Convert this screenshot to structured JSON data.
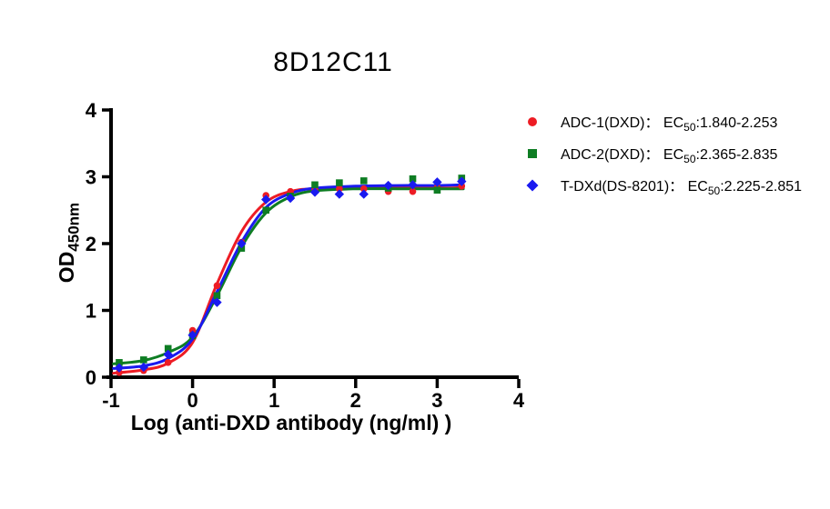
{
  "title": "8D12C11",
  "chart_data": {
    "type": "scatter",
    "title": "8D12C11",
    "xlabel": "Log (anti-DXD antibody (ng/ml) )",
    "ylabel": {
      "base": "OD",
      "subscript": "450nm"
    },
    "xlim": [
      -1,
      4
    ],
    "ylim": [
      0,
      4
    ],
    "x_ticks": [
      -1,
      0,
      1,
      2,
      3,
      4
    ],
    "y_ticks": [
      0,
      1,
      2,
      3,
      4
    ],
    "grid": false,
    "legend_position": "right-outside",
    "x": [
      -0.9,
      -0.6,
      -0.3,
      0.0,
      0.3,
      0.6,
      0.9,
      1.2,
      1.5,
      1.8,
      2.1,
      2.4,
      2.7,
      3.0,
      3.3
    ],
    "series": [
      {
        "name": "ADC-1(DXD)",
        "marker": "circle",
        "color": "#ed1c24",
        "ec50_range": "1.840-2.253",
        "values": [
          0.07,
          0.1,
          0.22,
          0.7,
          1.37,
          2.02,
          2.72,
          2.78,
          2.81,
          2.82,
          2.82,
          2.78,
          2.78,
          2.84,
          2.86
        ],
        "curve": [
          [
            -0.97,
            0.06
          ],
          [
            -0.6,
            0.11
          ],
          [
            -0.3,
            0.21
          ],
          [
            0.0,
            0.52
          ],
          [
            0.3,
            1.4
          ],
          [
            0.6,
            2.18
          ],
          [
            0.9,
            2.62
          ],
          [
            1.2,
            2.78
          ],
          [
            1.5,
            2.82
          ],
          [
            2.0,
            2.83
          ],
          [
            2.5,
            2.83
          ],
          [
            3.0,
            2.83
          ],
          [
            3.32,
            2.84
          ]
        ]
      },
      {
        "name": "ADC-2(DXD)",
        "marker": "square",
        "color": "#0e7d23",
        "ec50_range": "2.365-2.835",
        "values": [
          0.22,
          0.26,
          0.43,
          0.62,
          1.22,
          1.93,
          2.5,
          2.71,
          2.88,
          2.91,
          2.94,
          2.83,
          2.97,
          2.8,
          2.98
        ],
        "curve": [
          [
            -0.97,
            0.2
          ],
          [
            -0.6,
            0.25
          ],
          [
            -0.3,
            0.37
          ],
          [
            0.0,
            0.6
          ],
          [
            0.3,
            1.22
          ],
          [
            0.6,
            1.95
          ],
          [
            0.9,
            2.46
          ],
          [
            1.2,
            2.7
          ],
          [
            1.5,
            2.79
          ],
          [
            2.0,
            2.82
          ],
          [
            2.5,
            2.82
          ],
          [
            3.0,
            2.82
          ],
          [
            3.32,
            2.82
          ]
        ]
      },
      {
        "name": "T-DXd(DS-8201)",
        "marker": "diamond",
        "color": "#1a1af0",
        "ec50_range": "2.225-2.851",
        "values": [
          0.14,
          0.15,
          0.34,
          0.63,
          1.12,
          2.0,
          2.66,
          2.68,
          2.77,
          2.74,
          2.74,
          2.87,
          2.88,
          2.92,
          2.93
        ],
        "curve": [
          [
            -0.97,
            0.13
          ],
          [
            -0.6,
            0.17
          ],
          [
            -0.3,
            0.28
          ],
          [
            0.0,
            0.57
          ],
          [
            0.3,
            1.28
          ],
          [
            0.6,
            2.02
          ],
          [
            0.9,
            2.54
          ],
          [
            1.2,
            2.75
          ],
          [
            1.5,
            2.83
          ],
          [
            2.0,
            2.86
          ],
          [
            2.5,
            2.87
          ],
          [
            3.0,
            2.87
          ],
          [
            3.32,
            2.88
          ]
        ]
      }
    ]
  },
  "legend": {
    "items": [
      {
        "name": "ADC-1(DXD)",
        "colon": "：",
        "ec_label": "EC",
        "ec_sub": "50",
        "ec_range": ":1.840-2.253"
      },
      {
        "name": "ADC-2(DXD)",
        "colon": "：",
        "ec_label": "EC",
        "ec_sub": "50",
        "ec_range": ":2.365-2.835"
      },
      {
        "name": "T-DXd(DS-8201)",
        "colon": "：",
        "ec_label": "EC",
        "ec_sub": "50",
        "ec_range": ":2.225-2.851"
      }
    ]
  }
}
